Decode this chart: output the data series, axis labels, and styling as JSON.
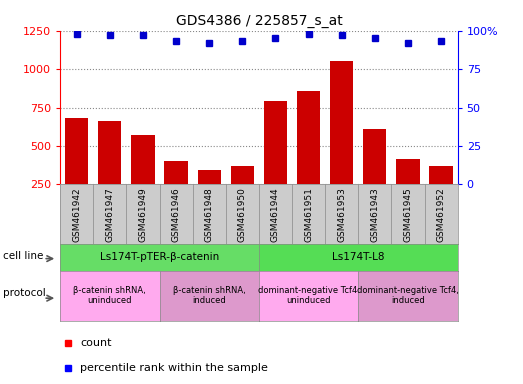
{
  "title": "GDS4386 / 225857_s_at",
  "samples": [
    "GSM461942",
    "GSM461947",
    "GSM461949",
    "GSM461946",
    "GSM461948",
    "GSM461950",
    "GSM461944",
    "GSM461951",
    "GSM461953",
    "GSM461943",
    "GSM461945",
    "GSM461952"
  ],
  "counts": [
    680,
    665,
    570,
    400,
    345,
    370,
    790,
    855,
    1050,
    610,
    415,
    370
  ],
  "percentile_ranks": [
    98,
    97,
    97,
    93,
    92,
    93,
    95,
    98,
    97,
    95,
    92,
    93
  ],
  "bar_color": "#cc0000",
  "dot_color": "#0000cc",
  "ylim_left": [
    250,
    1250
  ],
  "ylim_right": [
    0,
    100
  ],
  "yticks_left": [
    250,
    500,
    750,
    1000,
    1250
  ],
  "yticks_right": [
    0,
    25,
    50,
    75,
    100
  ],
  "cell_line_groups": [
    {
      "label": "Ls174T-pTER-β-catenin",
      "start": 0,
      "end": 6,
      "color": "#66dd66"
    },
    {
      "label": "Ls174T-L8",
      "start": 6,
      "end": 12,
      "color": "#55dd55"
    }
  ],
  "protocol_groups": [
    {
      "label": "β-catenin shRNA,\nuninduced",
      "start": 0,
      "end": 3,
      "color": "#ffaaee"
    },
    {
      "label": "β-catenin shRNA,\ninduced",
      "start": 3,
      "end": 6,
      "color": "#dd99cc"
    },
    {
      "label": "dominant-negative Tcf4,\nuninduced",
      "start": 6,
      "end": 9,
      "color": "#ffaaee"
    },
    {
      "label": "dominant-negative Tcf4,\ninduced",
      "start": 9,
      "end": 12,
      "color": "#dd99cc"
    }
  ],
  "cell_line_row_label": "cell line",
  "protocol_row_label": "protocol",
  "legend_count_label": "count",
  "legend_pct_label": "percentile rank within the sample",
  "bar_width": 0.7,
  "background_color": "#ffffff",
  "sample_cell_color": "#cccccc",
  "sample_cell_edge": "#888888"
}
